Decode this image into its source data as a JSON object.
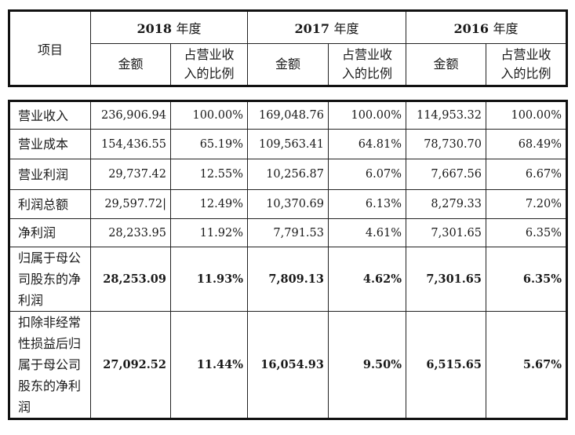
{
  "header": {
    "item": "项目",
    "years": [
      {
        "num": "2018",
        "unit": "年度"
      },
      {
        "num": "2017",
        "unit": "年度"
      },
      {
        "num": "2016",
        "unit": "年度"
      }
    ],
    "amount": "金额",
    "ratio_line1": "占营业收",
    "ratio_line2": "入的比例"
  },
  "rows": [
    {
      "label": "营业收入",
      "v": [
        "236,906.94",
        "100.00%",
        "169,048.76",
        "100.00%",
        "114,953.32",
        "100.00%"
      ]
    },
    {
      "label": "营业成本",
      "v": [
        "154,436.55",
        "65.19%",
        "109,563.41",
        "64.81%",
        "78,730.70",
        "68.49%"
      ]
    },
    {
      "label": "营业利润",
      "v": [
        "29,737.42",
        "12.55%",
        "10,256.87",
        "6.07%",
        "7,667.56",
        "6.67%"
      ]
    },
    {
      "label": "利润总额",
      "v": [
        "29,597.72|",
        "12.49%",
        "10,370.69",
        "6.13%",
        "8,279.33",
        "7.20%"
      ]
    },
    {
      "label": "净利润",
      "v": [
        "28,233.95",
        "11.92%",
        "7,791.53",
        "4.61%",
        "7,301.65",
        "6.35%"
      ]
    },
    {
      "label": "归属于母公司股东的净利润",
      "v": [
        "28,253.09",
        "11.93%",
        "7,809.13",
        "4.62%",
        "7,301.65",
        "6.35%"
      ]
    },
    {
      "label": "扣除非经常性损益后归属于母公司股东的净利润",
      "v": [
        "27,092.52",
        "11.44%",
        "16,054.93",
        "9.50%",
        "6,515.65",
        "5.67%"
      ]
    }
  ]
}
